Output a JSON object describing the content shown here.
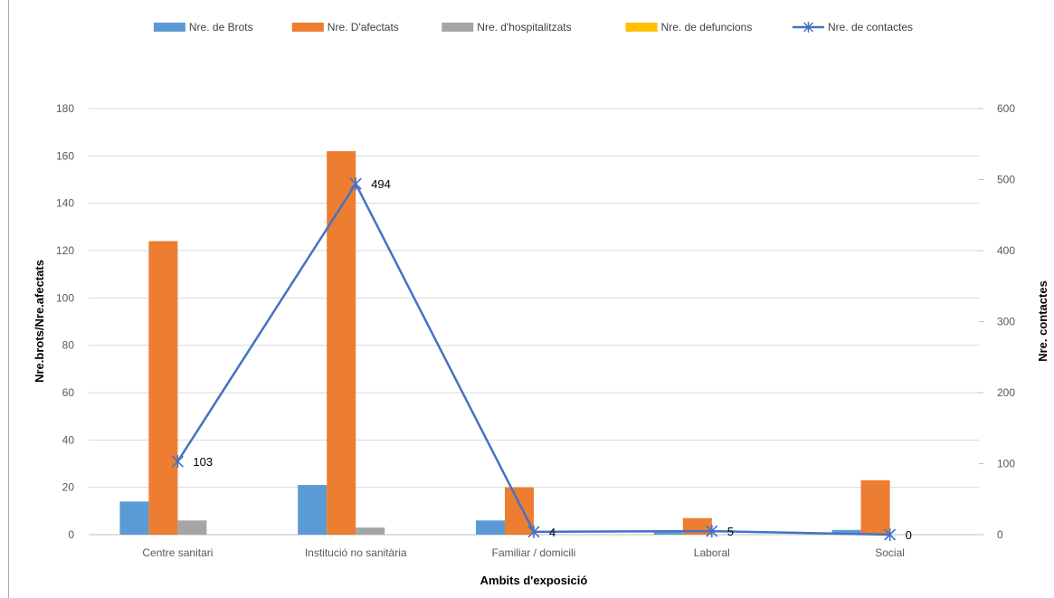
{
  "chart_data": {
    "type": "bar",
    "categories": [
      "Centre sanitari",
      "Institució no sanitària",
      "Familiar / domicili",
      "Laboral",
      "Social"
    ],
    "series": [
      {
        "name": "Nre. de Brots",
        "values": [
          14,
          21,
          6,
          1,
          2
        ],
        "color": "#5b9bd5",
        "kind": "bar",
        "axis": "left"
      },
      {
        "name": "Nre. D'afectats",
        "values": [
          124,
          162,
          20,
          7,
          23
        ],
        "color": "#ed7d31",
        "kind": "bar",
        "axis": "left"
      },
      {
        "name": "Nre. d'hospitalitzats",
        "values": [
          6,
          3,
          0,
          0,
          0
        ],
        "color": "#a5a5a5",
        "kind": "bar",
        "axis": "left"
      },
      {
        "name": "Nre. de defuncions",
        "values": [
          0,
          0,
          0,
          0,
          0
        ],
        "color": "#ffc000",
        "kind": "bar",
        "axis": "left"
      },
      {
        "name": "Nre. de contactes",
        "values": [
          103,
          494,
          4,
          5,
          0
        ],
        "color": "#4472c4",
        "kind": "line",
        "marker": "asterisk",
        "axis": "right",
        "data_labels": [
          "103",
          "494",
          "4",
          "5",
          "0"
        ]
      }
    ],
    "xlabel": "Ambits d'exposició",
    "ylabel": "Nre.brots/Nre.afectats",
    "y2label": "Nre. contactes",
    "ylim": [
      0,
      180
    ],
    "y2lim": [
      0,
      600
    ],
    "yticks": [
      "0",
      "20",
      "40",
      "60",
      "80",
      "100",
      "120",
      "140",
      "160",
      "180"
    ],
    "y2ticks": [
      "0",
      "100",
      "200",
      "300",
      "400",
      "500",
      "600"
    ],
    "grid": true,
    "legend_position": "top"
  }
}
